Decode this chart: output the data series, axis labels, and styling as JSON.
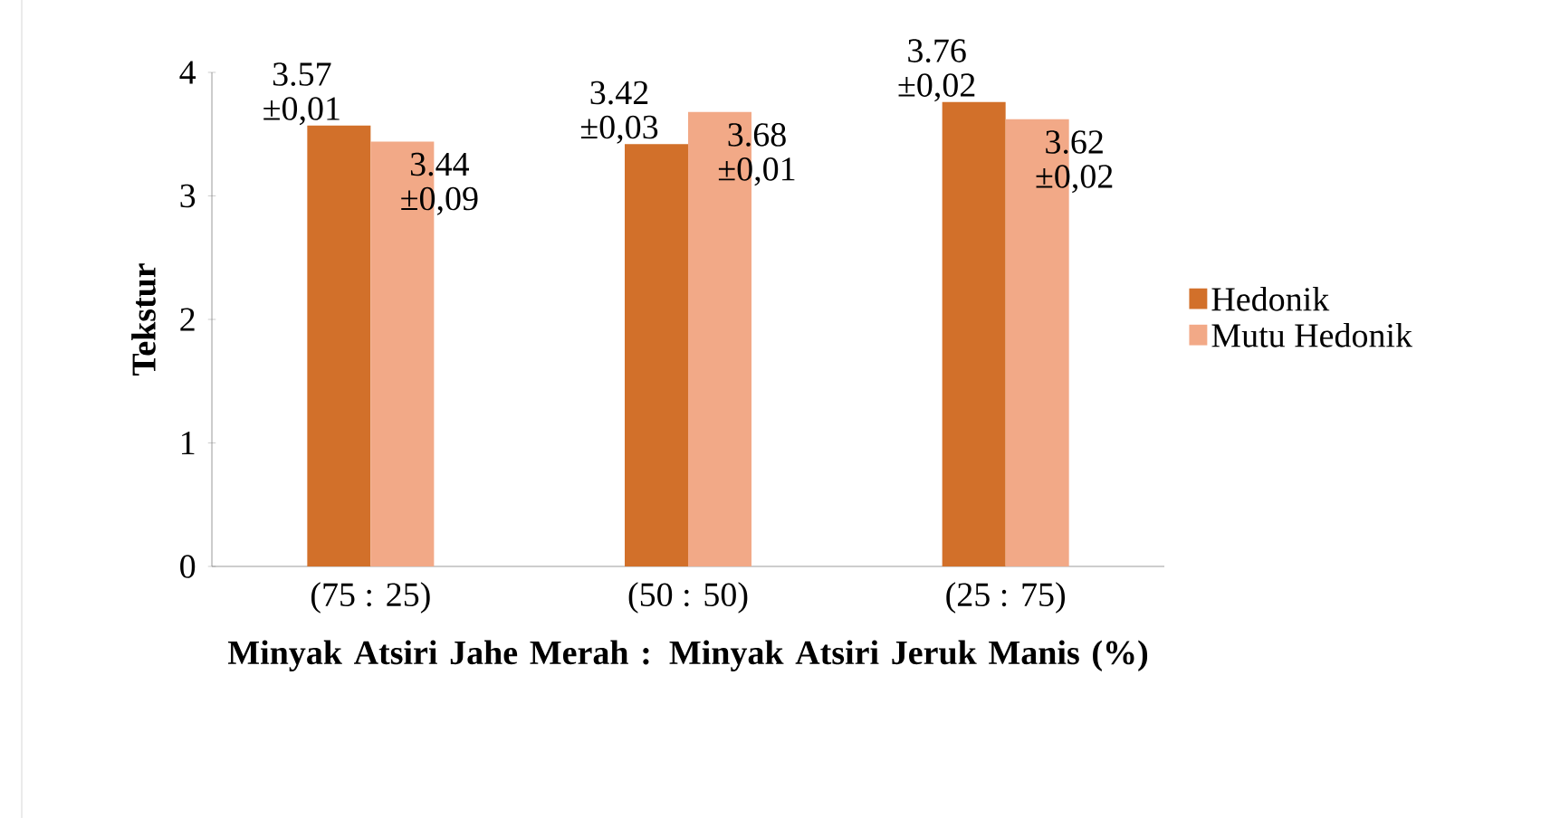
{
  "chart_data": {
    "type": "bar",
    "ylabel": "Tekstur",
    "xlabel": "Minyak Atsiri Jahe Merah : Minyak Atsiri Jeruk Manis (%)",
    "categories": [
      "(75 : 25)",
      "(50 : 50)",
      "(25 : 75)"
    ],
    "series": [
      {
        "name": "Hedonik",
        "color": "#d2702a",
        "values": [
          3.57,
          3.42,
          3.76
        ],
        "value_labels": [
          "3.57 ±0,01",
          "3.42 ±0,03",
          "3.76 ±0,02"
        ]
      },
      {
        "name": "Mutu Hedonik",
        "color": "#f2a987",
        "values": [
          3.44,
          3.68,
          3.62
        ],
        "value_labels": [
          "3.44 ±0,09",
          "3.68 ±0,01",
          "3.62 ±0,02"
        ]
      }
    ],
    "ylim": [
      0,
      4
    ],
    "yticks": [
      0,
      1,
      2,
      3,
      4
    ],
    "legend": "right",
    "grid": false
  }
}
